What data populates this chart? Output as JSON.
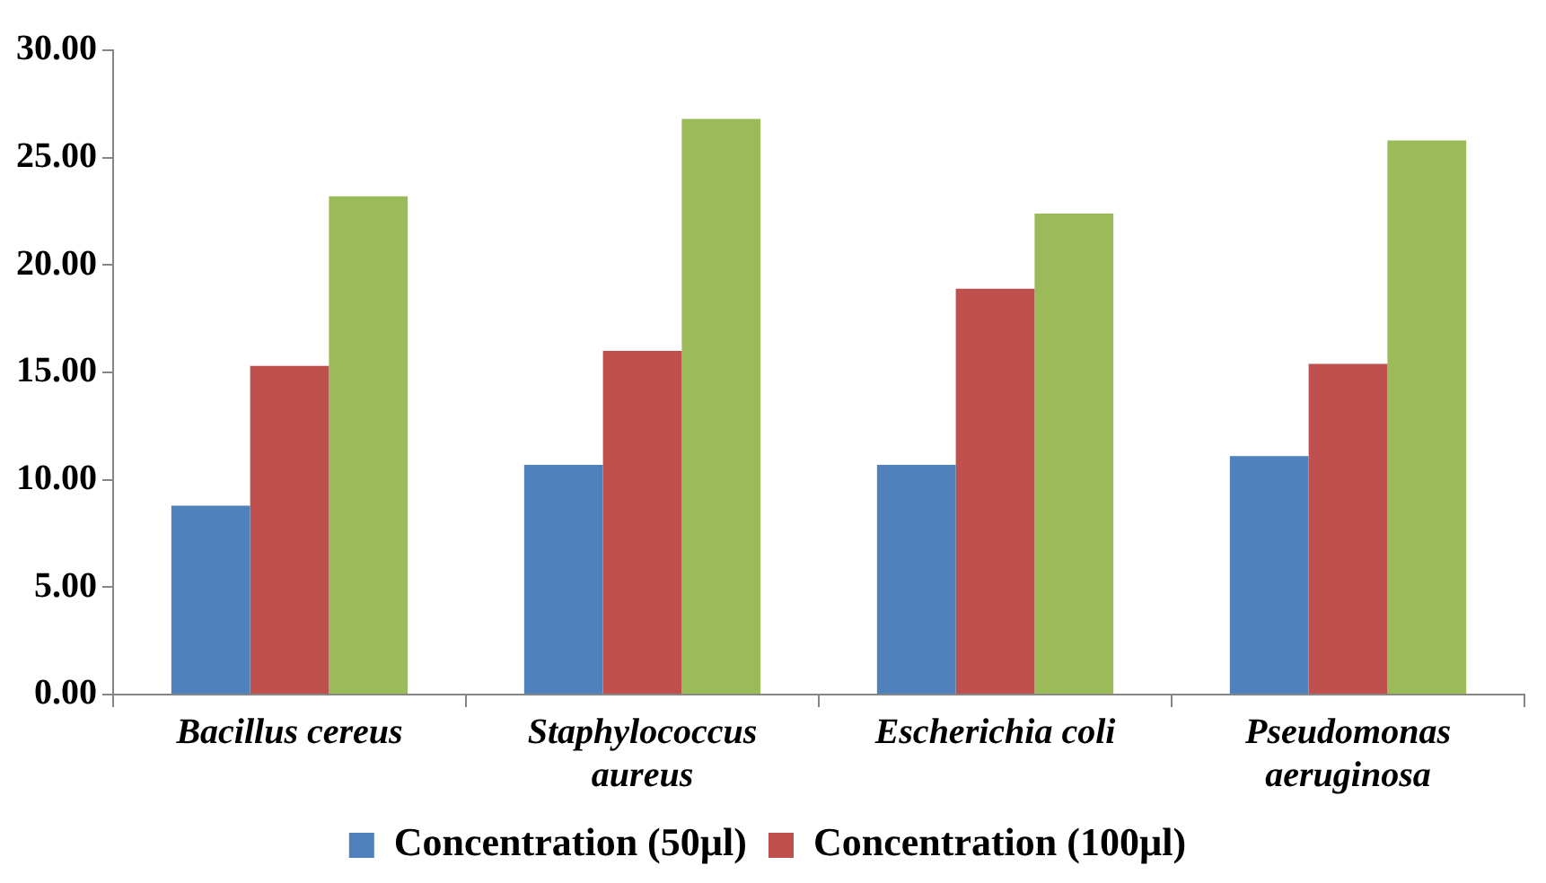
{
  "chart_data": {
    "type": "bar",
    "categories": [
      "Bacillus cereus",
      "Staphylococcus aureus",
      "Escherichia coli",
      "Pseudomonas aeruginosa"
    ],
    "series": [
      {
        "name": "Concentration (50µl)",
        "color": "#4f81bd",
        "values": [
          8.8,
          10.7,
          10.7,
          11.1
        ]
      },
      {
        "name": "Concentration (100µl)",
        "color": "#c0504d",
        "values": [
          15.3,
          16.0,
          18.9,
          15.4
        ]
      },
      {
        "color": "#9bbb59",
        "values": [
          23.2,
          26.8,
          22.4,
          25.8
        ]
      }
    ],
    "ylim": [
      0,
      30
    ],
    "yticks": [
      {
        "value": 0,
        "label": "0.00"
      },
      {
        "value": 5,
        "label": "5.00"
      },
      {
        "value": 10,
        "label": "10.00"
      },
      {
        "value": 15,
        "label": "15.00"
      },
      {
        "value": 20,
        "label": "20.00"
      },
      {
        "value": 25,
        "label": "25.00"
      },
      {
        "value": 30,
        "label": "30.00"
      }
    ],
    "grid": false,
    "legend": "bottom"
  }
}
